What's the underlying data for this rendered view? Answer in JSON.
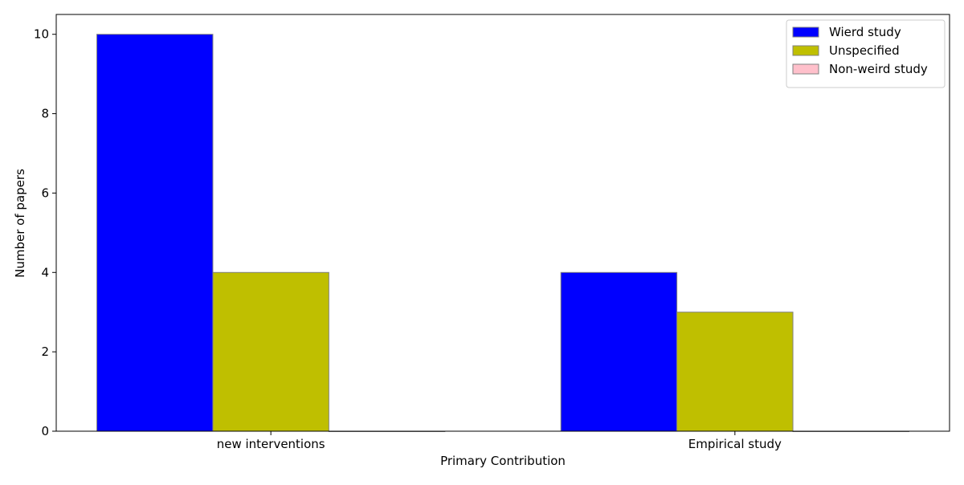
{
  "chart_data": {
    "type": "bar",
    "title": "",
    "xlabel": "Primary Contribution",
    "ylabel": "Number of papers",
    "categories": [
      "new interventions",
      "Empirical study"
    ],
    "series": [
      {
        "name": "Wierd study",
        "values": [
          10,
          4
        ],
        "color": "#0000ff"
      },
      {
        "name": "Unspecified",
        "values": [
          4,
          3
        ],
        "color": "#bfbf00"
      },
      {
        "name": "Non-weird study",
        "values": [
          0,
          0
        ],
        "color": "#ffc0cb"
      }
    ],
    "ylim": [
      0,
      10.5
    ],
    "yticks": [
      0,
      2,
      4,
      6,
      8,
      10
    ],
    "grid": false,
    "legend_position": "top-right"
  }
}
